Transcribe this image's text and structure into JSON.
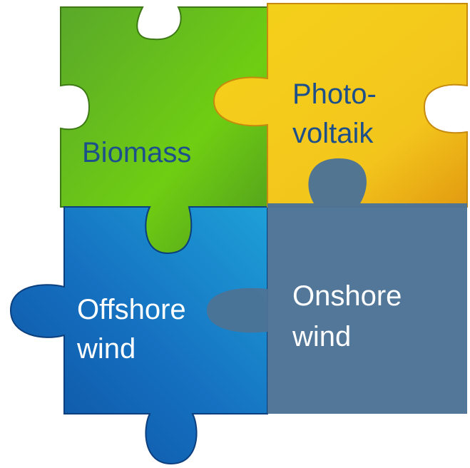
{
  "pieces": [
    {
      "lines": [
        "Biomass"
      ]
    },
    {
      "lines": [
        "Photo-",
        "voltaik"
      ]
    },
    {
      "lines": [
        "Offshore",
        "wind"
      ]
    },
    {
      "lines": [
        "Onshore",
        "wind"
      ]
    }
  ]
}
